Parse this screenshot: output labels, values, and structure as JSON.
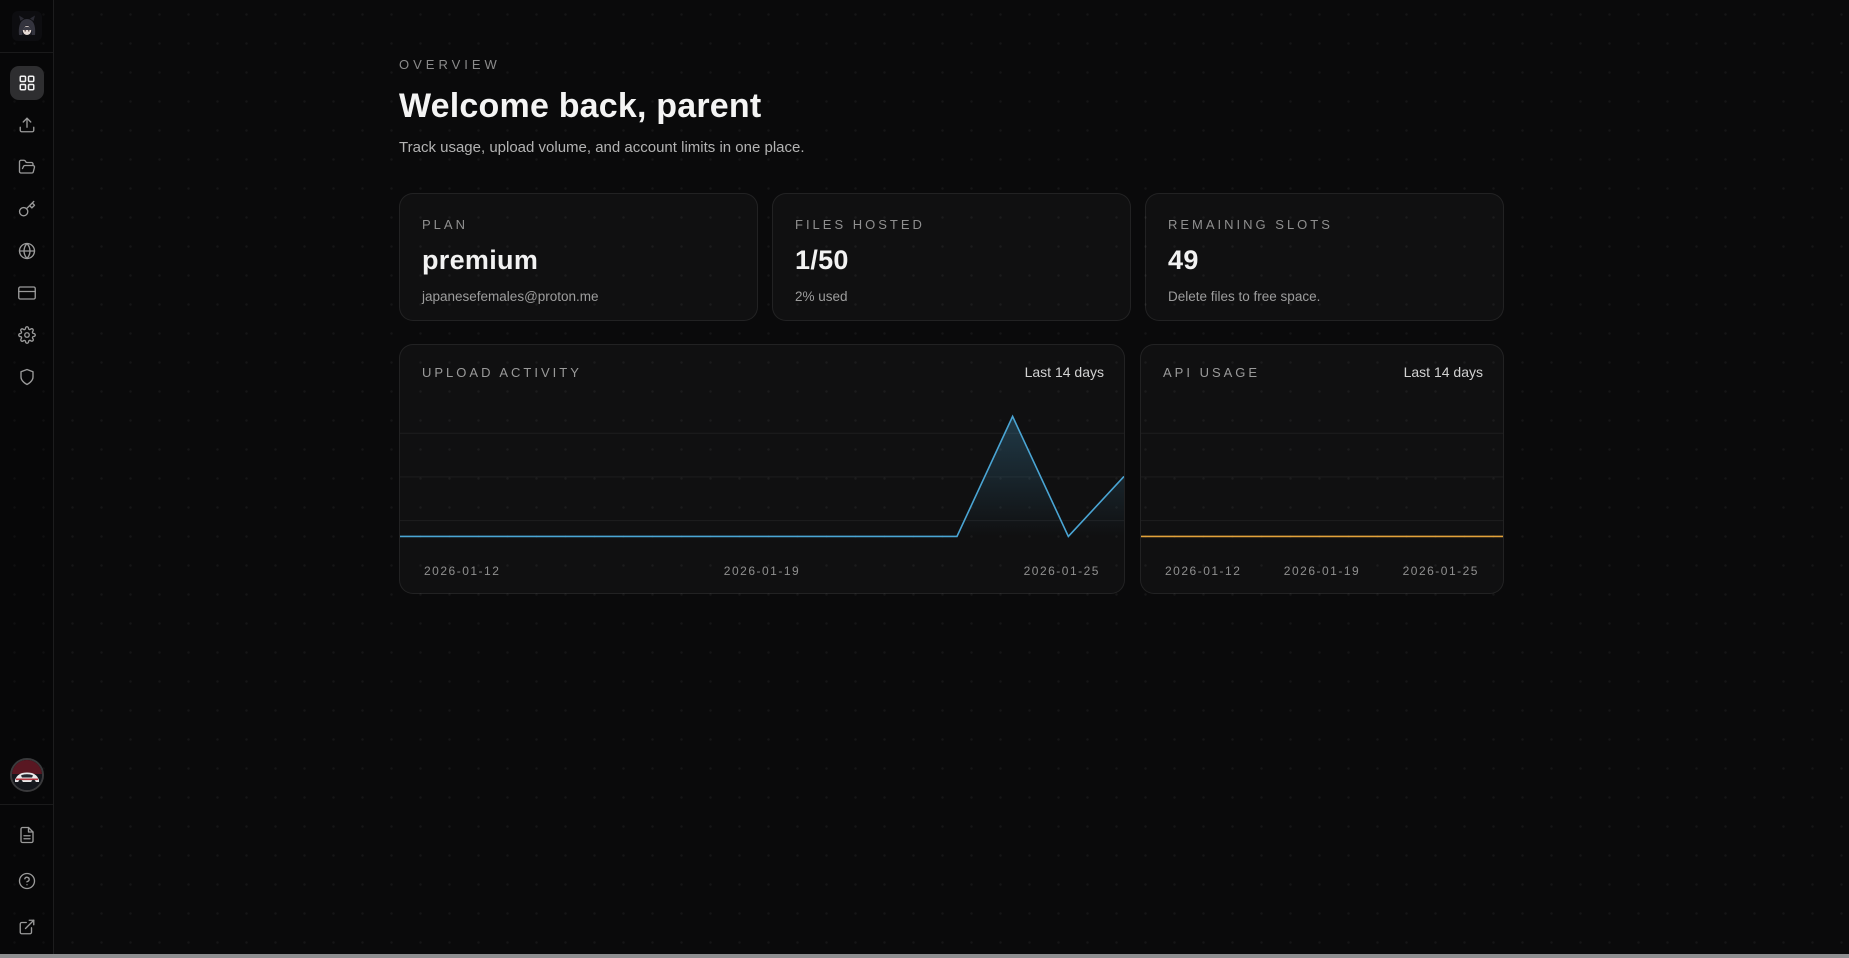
{
  "header": {
    "eyebrow": "OVERVIEW",
    "title": "Welcome back, parent",
    "subtitle": "Track usage, upload volume, and account limits in one place."
  },
  "stats": [
    {
      "label": "PLAN",
      "value": "premium",
      "sub": "japanesefemales@proton.me"
    },
    {
      "label": "FILES HOSTED",
      "value": "1/50",
      "sub": "2% used"
    },
    {
      "label": "REMAINING SLOTS",
      "value": "49",
      "sub": "Delete files to free space."
    }
  ],
  "chart_data": [
    {
      "type": "area",
      "title": "UPLOAD ACTIVITY",
      "range_label": "Last 14 days",
      "x": [
        "2026-01-12",
        "2026-01-13",
        "2026-01-14",
        "2026-01-15",
        "2026-01-16",
        "2026-01-17",
        "2026-01-18",
        "2026-01-19",
        "2026-01-20",
        "2026-01-21",
        "2026-01-22",
        "2026-01-23",
        "2026-01-24",
        "2026-01-25"
      ],
      "values": [
        0,
        0,
        0,
        0,
        0,
        0,
        0,
        0,
        0,
        0,
        0,
        2,
        0,
        1
      ],
      "tick_labels": [
        "2026-01-12",
        "2026-01-19",
        "2026-01-25"
      ],
      "line_color": "#4aa5d4",
      "fill_color": "rgba(74,165,212,0.22)",
      "ylim": [
        0,
        2.6
      ],
      "grid": "horizontal"
    },
    {
      "type": "line",
      "title": "API USAGE",
      "range_label": "Last 14 days",
      "x": [
        "2026-01-12",
        "2026-01-13",
        "2026-01-14",
        "2026-01-15",
        "2026-01-16",
        "2026-01-17",
        "2026-01-18",
        "2026-01-19",
        "2026-01-20",
        "2026-01-21",
        "2026-01-22",
        "2026-01-23",
        "2026-01-24",
        "2026-01-25"
      ],
      "values": [
        0,
        0,
        0,
        0,
        0,
        0,
        0,
        0,
        0,
        0,
        0,
        0,
        0,
        0
      ],
      "tick_labels": [
        "2026-01-12",
        "2026-01-19",
        "2026-01-25"
      ],
      "line_color": "#e2a23b",
      "fill_color": "rgba(226,162,59,0)",
      "ylim": [
        0,
        2.6
      ],
      "grid": "horizontal"
    }
  ],
  "colors": {
    "background": "#0a0a0b",
    "card_border": "rgba(255,255,255,0.08)",
    "accent_blue": "#4aa5d4",
    "accent_amber": "#e2a23b",
    "active_nav_bg": "#2e2e30"
  }
}
